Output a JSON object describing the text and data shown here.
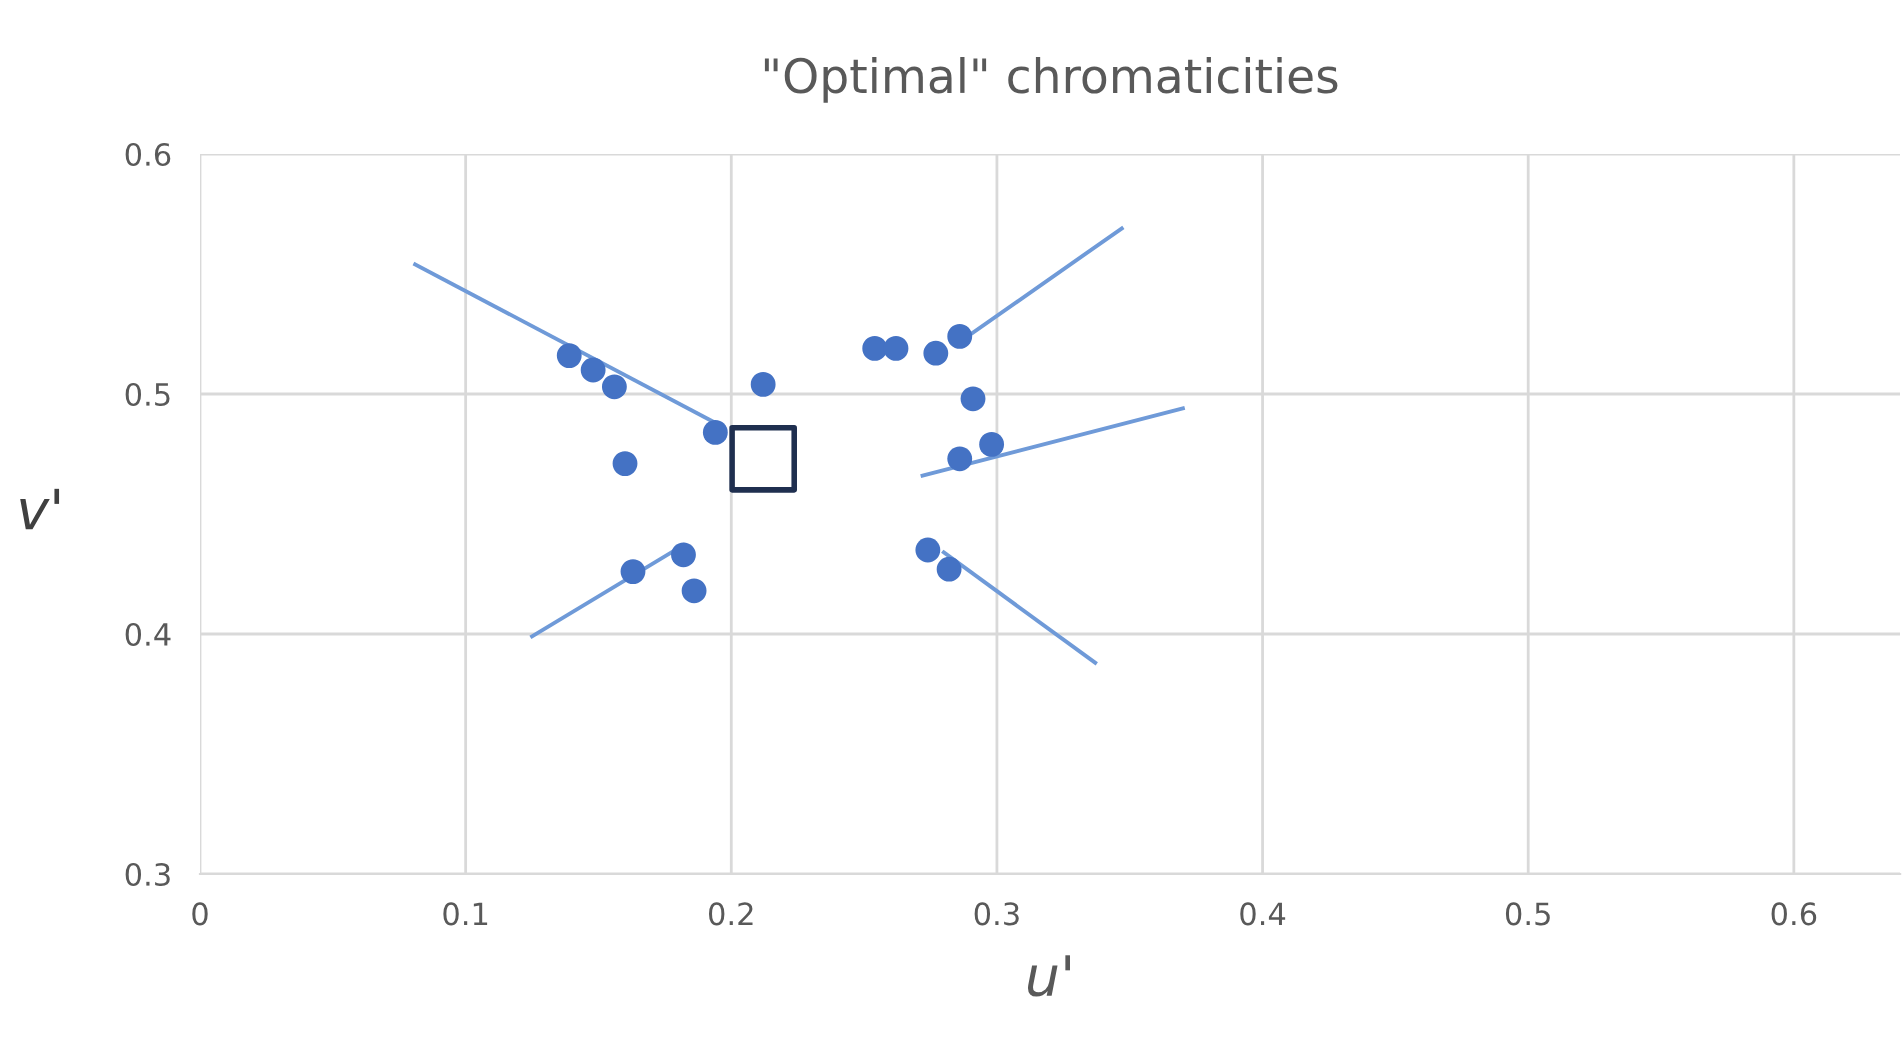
{
  "chart_data": {
    "type": "scatter",
    "title": "\"Optimal\" chromaticities",
    "xlabel": "u'",
    "ylabel": "v'",
    "xlim": [
      0,
      0.64
    ],
    "ylim": [
      0.3,
      0.6
    ],
    "xticks": [
      0,
      0.1,
      0.2,
      0.3,
      0.4,
      0.5,
      0.6
    ],
    "yticks": [
      0.3,
      0.4,
      0.5,
      0.6
    ],
    "grid": true,
    "legend": false,
    "series": [
      {
        "marker": "circle",
        "color": "#4472c4",
        "x": [
          0.139,
          0.148,
          0.156,
          0.194,
          0.16,
          0.212,
          0.163,
          0.182,
          0.186,
          0.254,
          0.262,
          0.277,
          0.286,
          0.291,
          0.298,
          0.286,
          0.274,
          0.282
        ],
        "values": [
          0.516,
          0.51,
          0.503,
          0.484,
          0.471,
          0.504,
          0.426,
          0.433,
          0.418,
          0.519,
          0.519,
          0.517,
          0.524,
          0.498,
          0.479,
          0.473,
          0.435,
          0.427
        ]
      },
      {
        "type": "line",
        "marker": "none",
        "color": "#6f9ad8",
        "x": [
          0.081,
          0.194
        ],
        "values": [
          0.554,
          0.488
        ]
      },
      {
        "type": "line",
        "marker": "none",
        "color": "#6f9ad8",
        "x": [
          0.125,
          0.182
        ],
        "values": [
          0.399,
          0.437
        ]
      },
      {
        "type": "line",
        "marker": "none",
        "color": "#6f9ad8",
        "x": [
          0.289,
          0.347
        ],
        "values": [
          0.524,
          0.569
        ]
      },
      {
        "type": "line",
        "marker": "none",
        "color": "#6f9ad8",
        "x": [
          0.272,
          0.37
        ],
        "values": [
          0.466,
          0.494
        ]
      },
      {
        "type": "line",
        "marker": "none",
        "color": "#6f9ad8",
        "x": [
          0.28,
          0.337
        ],
        "values": [
          0.434,
          0.388
        ]
      },
      {
        "marker": "square",
        "color": "#1f2f4f",
        "x": [
          0.212
        ],
        "values": [
          0.473
        ]
      }
    ]
  }
}
